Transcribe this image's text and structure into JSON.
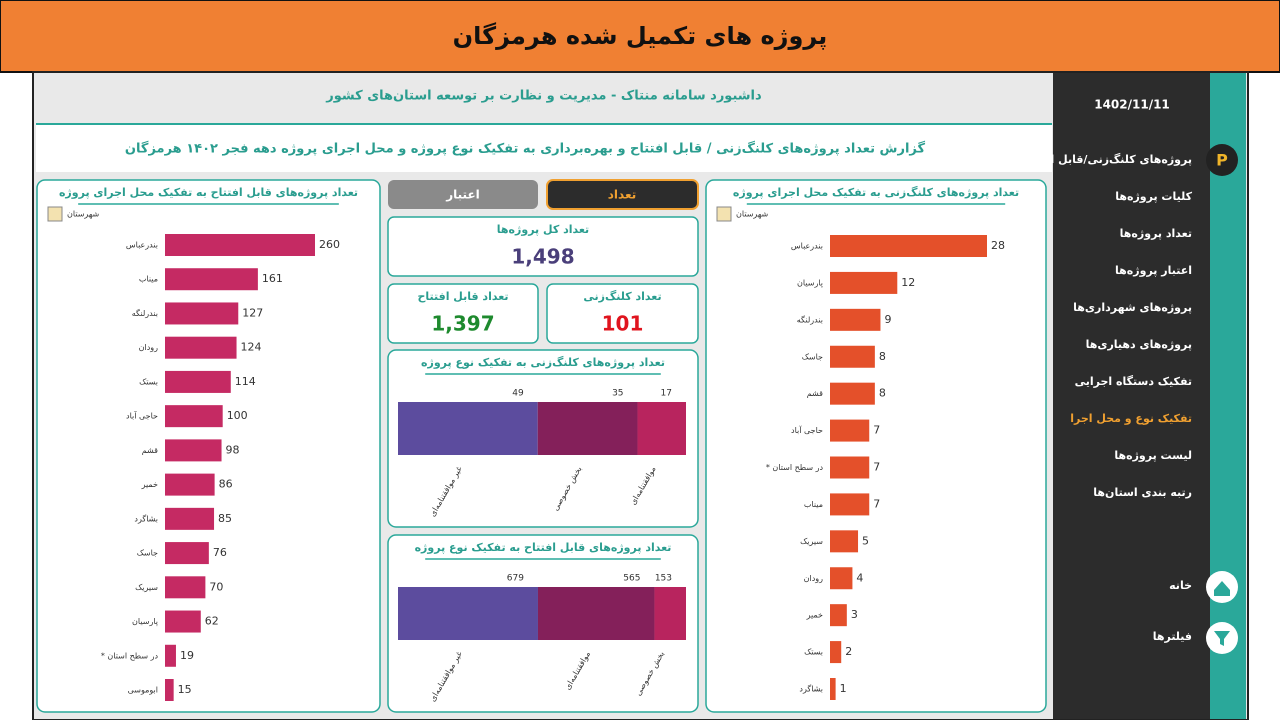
{
  "banner": {
    "title": "پروژه های تکمیل شده هرمزگان"
  },
  "header": {
    "title": "داشبورد سامانه منتاک - مدیریت و نظارت بر توسعه استان‌های کشور",
    "subtitle": "گزارش تعداد پروژه‌های کلنگ‌زنی / قابل افتتاح و بهره‌برداری به تفکیک نوع پروژه و محل اجرای پروژه دهه فجر ۱۴۰۲ هرمزگان"
  },
  "sidebar": {
    "date": "1402/11/11",
    "menu": [
      "پروژه‌های کلنگ‌زنی/قابل افتتاح",
      "کلیات پروژه‌ها",
      "تعداد پروژه‌ها",
      "اعتبار پروژه‌ها",
      "پروژه‌های شهرداری‌ها",
      "پروژه‌های دهیاری‌ها",
      "تفکیک دستگاه اجرایی",
      "تفکیک نوع و محل اجرا",
      "لیست پروژه‌ها",
      "رتبه بندی استان‌ها"
    ],
    "bottom": [
      "خانه",
      "فیلترها"
    ]
  },
  "toggle": [
    "تعداد",
    "اعتبار"
  ],
  "kpis": [
    {
      "label": "تعداد کل پروژه‌ها",
      "value": "1,498",
      "color": "#4a3f7a"
    },
    {
      "label": "تعداد قابل افتتاح",
      "value": "1,397",
      "color": "#1e8a2e"
    },
    {
      "label": "تعداد کلنگ‌زنی",
      "value": "101",
      "color": "#e0141e"
    }
  ],
  "chart_data": [
    {
      "type": "bar",
      "title": "تعداد پروژه‌های قابل افتتاح به تفکیک محل اجرای پروژه",
      "axis_label": "شهرستان",
      "color": "#c52a63",
      "categories": [
        "بندرعباس",
        "میناب",
        "بندرلنگه",
        "رودان",
        "بستک",
        "حاجی آباد",
        "قشم",
        "خمیر",
        "بشاگرد",
        "جاسک",
        "سیریک",
        "پارسیان",
        "* در سطح استان",
        "ابوموسی"
      ],
      "values": [
        260,
        161,
        127,
        124,
        114,
        100,
        98,
        86,
        85,
        76,
        70,
        62,
        19,
        15
      ]
    },
    {
      "type": "bar",
      "title": "تعداد پروژه‌های کلنگ‌زنی به تفکیک محل اجرای پروژه",
      "axis_label": "شهرستان",
      "color": "#e4502a",
      "categories": [
        "بندرعباس",
        "پارسیان",
        "بندرلنگه",
        "جاسک",
        "قشم",
        "حاجی آباد",
        "* در سطح استان",
        "میناب",
        "سیریک",
        "رودان",
        "خمیر",
        "بستک",
        "بشاگرد"
      ],
      "values": [
        28,
        12,
        9,
        8,
        8,
        7,
        7,
        7,
        5,
        4,
        3,
        2,
        1
      ]
    },
    {
      "type": "stacked_bar",
      "title": "تعداد پروژه‌های کلنگ‌زنی به تفکیک نوع پروژه",
      "categories": [
        "غیر موافقتنامه‌ای",
        "بخش خصوصی",
        "موافقتنامه‌ای"
      ],
      "values": [
        49,
        35,
        17
      ],
      "colors": [
        "#5c4c9e",
        "#84205a",
        "#b8245e"
      ]
    },
    {
      "type": "stacked_bar",
      "title": "تعداد پروژه‌های قابل افتتاح به تفکیک نوع پروژه",
      "categories": [
        "غیر موافقتنامه‌ای",
        "موافقتنامه‌ای",
        "بخش خصوصی"
      ],
      "values": [
        679,
        565,
        153
      ],
      "colors": [
        "#5c4c9e",
        "#84205a",
        "#b8245e"
      ]
    }
  ]
}
